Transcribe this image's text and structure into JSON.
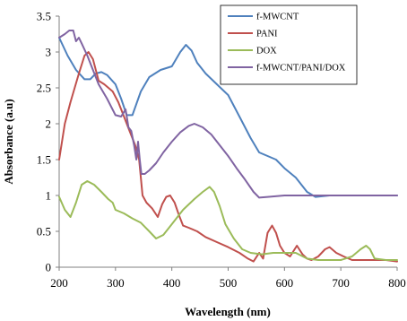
{
  "chart_data": {
    "type": "line",
    "title": "",
    "xlabel": "Wavelength (nm)",
    "ylabel": "Absorbance (a.u)",
    "xlim": [
      200,
      800
    ],
    "ylim": [
      0,
      3.5
    ],
    "x_ticks": [
      "200",
      "300",
      "400",
      "500",
      "600",
      "700",
      "800"
    ],
    "y_ticks": [
      "0",
      "0.5",
      "1",
      "1.5",
      "2",
      "2.5",
      "3",
      "3.5"
    ],
    "grid": false,
    "legend_position": "top-right",
    "series": [
      {
        "name": "f-MWCNT",
        "color": "#4F81BD",
        "points": [
          [
            200,
            3.2
          ],
          [
            215,
            2.95
          ],
          [
            230,
            2.75
          ],
          [
            245,
            2.62
          ],
          [
            255,
            2.62
          ],
          [
            265,
            2.7
          ],
          [
            275,
            2.72
          ],
          [
            285,
            2.68
          ],
          [
            300,
            2.55
          ],
          [
            310,
            2.35
          ],
          [
            320,
            2.12
          ],
          [
            330,
            2.12
          ],
          [
            345,
            2.45
          ],
          [
            360,
            2.65
          ],
          [
            380,
            2.75
          ],
          [
            400,
            2.8
          ],
          [
            415,
            3.0
          ],
          [
            425,
            3.1
          ],
          [
            435,
            3.02
          ],
          [
            445,
            2.85
          ],
          [
            460,
            2.7
          ],
          [
            480,
            2.55
          ],
          [
            500,
            2.4
          ],
          [
            520,
            2.1
          ],
          [
            540,
            1.8
          ],
          [
            555,
            1.6
          ],
          [
            570,
            1.55
          ],
          [
            585,
            1.5
          ],
          [
            600,
            1.38
          ],
          [
            620,
            1.25
          ],
          [
            640,
            1.05
          ],
          [
            655,
            0.98
          ],
          [
            680,
            1.0
          ],
          [
            720,
            1.0
          ],
          [
            760,
            1.0
          ],
          [
            800,
            1.0
          ]
        ]
      },
      {
        "name": "PANI",
        "color": "#C0504D",
        "points": [
          [
            200,
            1.5
          ],
          [
            210,
            2.0
          ],
          [
            220,
            2.3
          ],
          [
            235,
            2.7
          ],
          [
            245,
            2.95
          ],
          [
            252,
            3.0
          ],
          [
            260,
            2.9
          ],
          [
            270,
            2.6
          ],
          [
            280,
            2.55
          ],
          [
            295,
            2.45
          ],
          [
            305,
            2.3
          ],
          [
            315,
            2.1
          ],
          [
            325,
            1.9
          ],
          [
            335,
            1.7
          ],
          [
            342,
            1.5
          ],
          [
            348,
            1.0
          ],
          [
            355,
            0.9
          ],
          [
            365,
            0.82
          ],
          [
            375,
            0.7
          ],
          [
            383,
            0.88
          ],
          [
            390,
            0.98
          ],
          [
            397,
            1.0
          ],
          [
            405,
            0.9
          ],
          [
            413,
            0.72
          ],
          [
            420,
            0.58
          ],
          [
            430,
            0.55
          ],
          [
            445,
            0.5
          ],
          [
            460,
            0.42
          ],
          [
            480,
            0.35
          ],
          [
            500,
            0.28
          ],
          [
            520,
            0.2
          ],
          [
            535,
            0.12
          ],
          [
            545,
            0.08
          ],
          [
            555,
            0.2
          ],
          [
            562,
            0.12
          ],
          [
            570,
            0.48
          ],
          [
            578,
            0.58
          ],
          [
            585,
            0.48
          ],
          [
            592,
            0.3
          ],
          [
            600,
            0.2
          ],
          [
            610,
            0.15
          ],
          [
            622,
            0.3
          ],
          [
            632,
            0.18
          ],
          [
            640,
            0.12
          ],
          [
            648,
            0.1
          ],
          [
            660,
            0.15
          ],
          [
            672,
            0.25
          ],
          [
            680,
            0.28
          ],
          [
            692,
            0.2
          ],
          [
            705,
            0.15
          ],
          [
            720,
            0.1
          ],
          [
            740,
            0.1
          ],
          [
            760,
            0.1
          ],
          [
            780,
            0.1
          ],
          [
            800,
            0.08
          ]
        ]
      },
      {
        "name": "DOX",
        "color": "#9BBB59",
        "points": [
          [
            200,
            0.98
          ],
          [
            210,
            0.8
          ],
          [
            220,
            0.7
          ],
          [
            230,
            0.9
          ],
          [
            240,
            1.15
          ],
          [
            250,
            1.2
          ],
          [
            262,
            1.15
          ],
          [
            275,
            1.05
          ],
          [
            287,
            0.95
          ],
          [
            295,
            0.9
          ],
          [
            300,
            0.8
          ],
          [
            315,
            0.75
          ],
          [
            330,
            0.68
          ],
          [
            345,
            0.62
          ],
          [
            360,
            0.5
          ],
          [
            372,
            0.4
          ],
          [
            385,
            0.45
          ],
          [
            400,
            0.6
          ],
          [
            420,
            0.8
          ],
          [
            440,
            0.95
          ],
          [
            455,
            1.05
          ],
          [
            467,
            1.12
          ],
          [
            475,
            1.05
          ],
          [
            485,
            0.85
          ],
          [
            495,
            0.6
          ],
          [
            510,
            0.4
          ],
          [
            525,
            0.25
          ],
          [
            540,
            0.2
          ],
          [
            560,
            0.18
          ],
          [
            580,
            0.2
          ],
          [
            600,
            0.2
          ],
          [
            620,
            0.2
          ],
          [
            640,
            0.12
          ],
          [
            660,
            0.1
          ],
          [
            680,
            0.1
          ],
          [
            700,
            0.1
          ],
          [
            720,
            0.15
          ],
          [
            735,
            0.25
          ],
          [
            745,
            0.3
          ],
          [
            752,
            0.25
          ],
          [
            760,
            0.12
          ],
          [
            780,
            0.1
          ],
          [
            800,
            0.1
          ]
        ]
      },
      {
        "name": "f-MWCNT/PANI/DOX",
        "color": "#8064A2",
        "points": [
          [
            200,
            3.2
          ],
          [
            210,
            3.25
          ],
          [
            218,
            3.3
          ],
          [
            225,
            3.3
          ],
          [
            230,
            3.15
          ],
          [
            235,
            3.2
          ],
          [
            240,
            3.12
          ],
          [
            250,
            2.95
          ],
          [
            260,
            2.75
          ],
          [
            270,
            2.55
          ],
          [
            285,
            2.35
          ],
          [
            300,
            2.12
          ],
          [
            310,
            2.1
          ],
          [
            318,
            2.2
          ],
          [
            323,
            1.95
          ],
          [
            328,
            1.9
          ],
          [
            333,
            1.7
          ],
          [
            337,
            1.5
          ],
          [
            340,
            1.75
          ],
          [
            343,
            1.5
          ],
          [
            346,
            1.3
          ],
          [
            352,
            1.3
          ],
          [
            360,
            1.35
          ],
          [
            372,
            1.45
          ],
          [
            385,
            1.6
          ],
          [
            400,
            1.75
          ],
          [
            415,
            1.88
          ],
          [
            430,
            1.97
          ],
          [
            440,
            2.0
          ],
          [
            455,
            1.95
          ],
          [
            470,
            1.85
          ],
          [
            485,
            1.7
          ],
          [
            500,
            1.55
          ],
          [
            515,
            1.38
          ],
          [
            530,
            1.22
          ],
          [
            545,
            1.05
          ],
          [
            555,
            0.97
          ],
          [
            570,
            0.98
          ],
          [
            600,
            1.0
          ],
          [
            650,
            1.0
          ],
          [
            700,
            1.0
          ],
          [
            750,
            1.0
          ],
          [
            800,
            1.0
          ]
        ]
      }
    ]
  }
}
